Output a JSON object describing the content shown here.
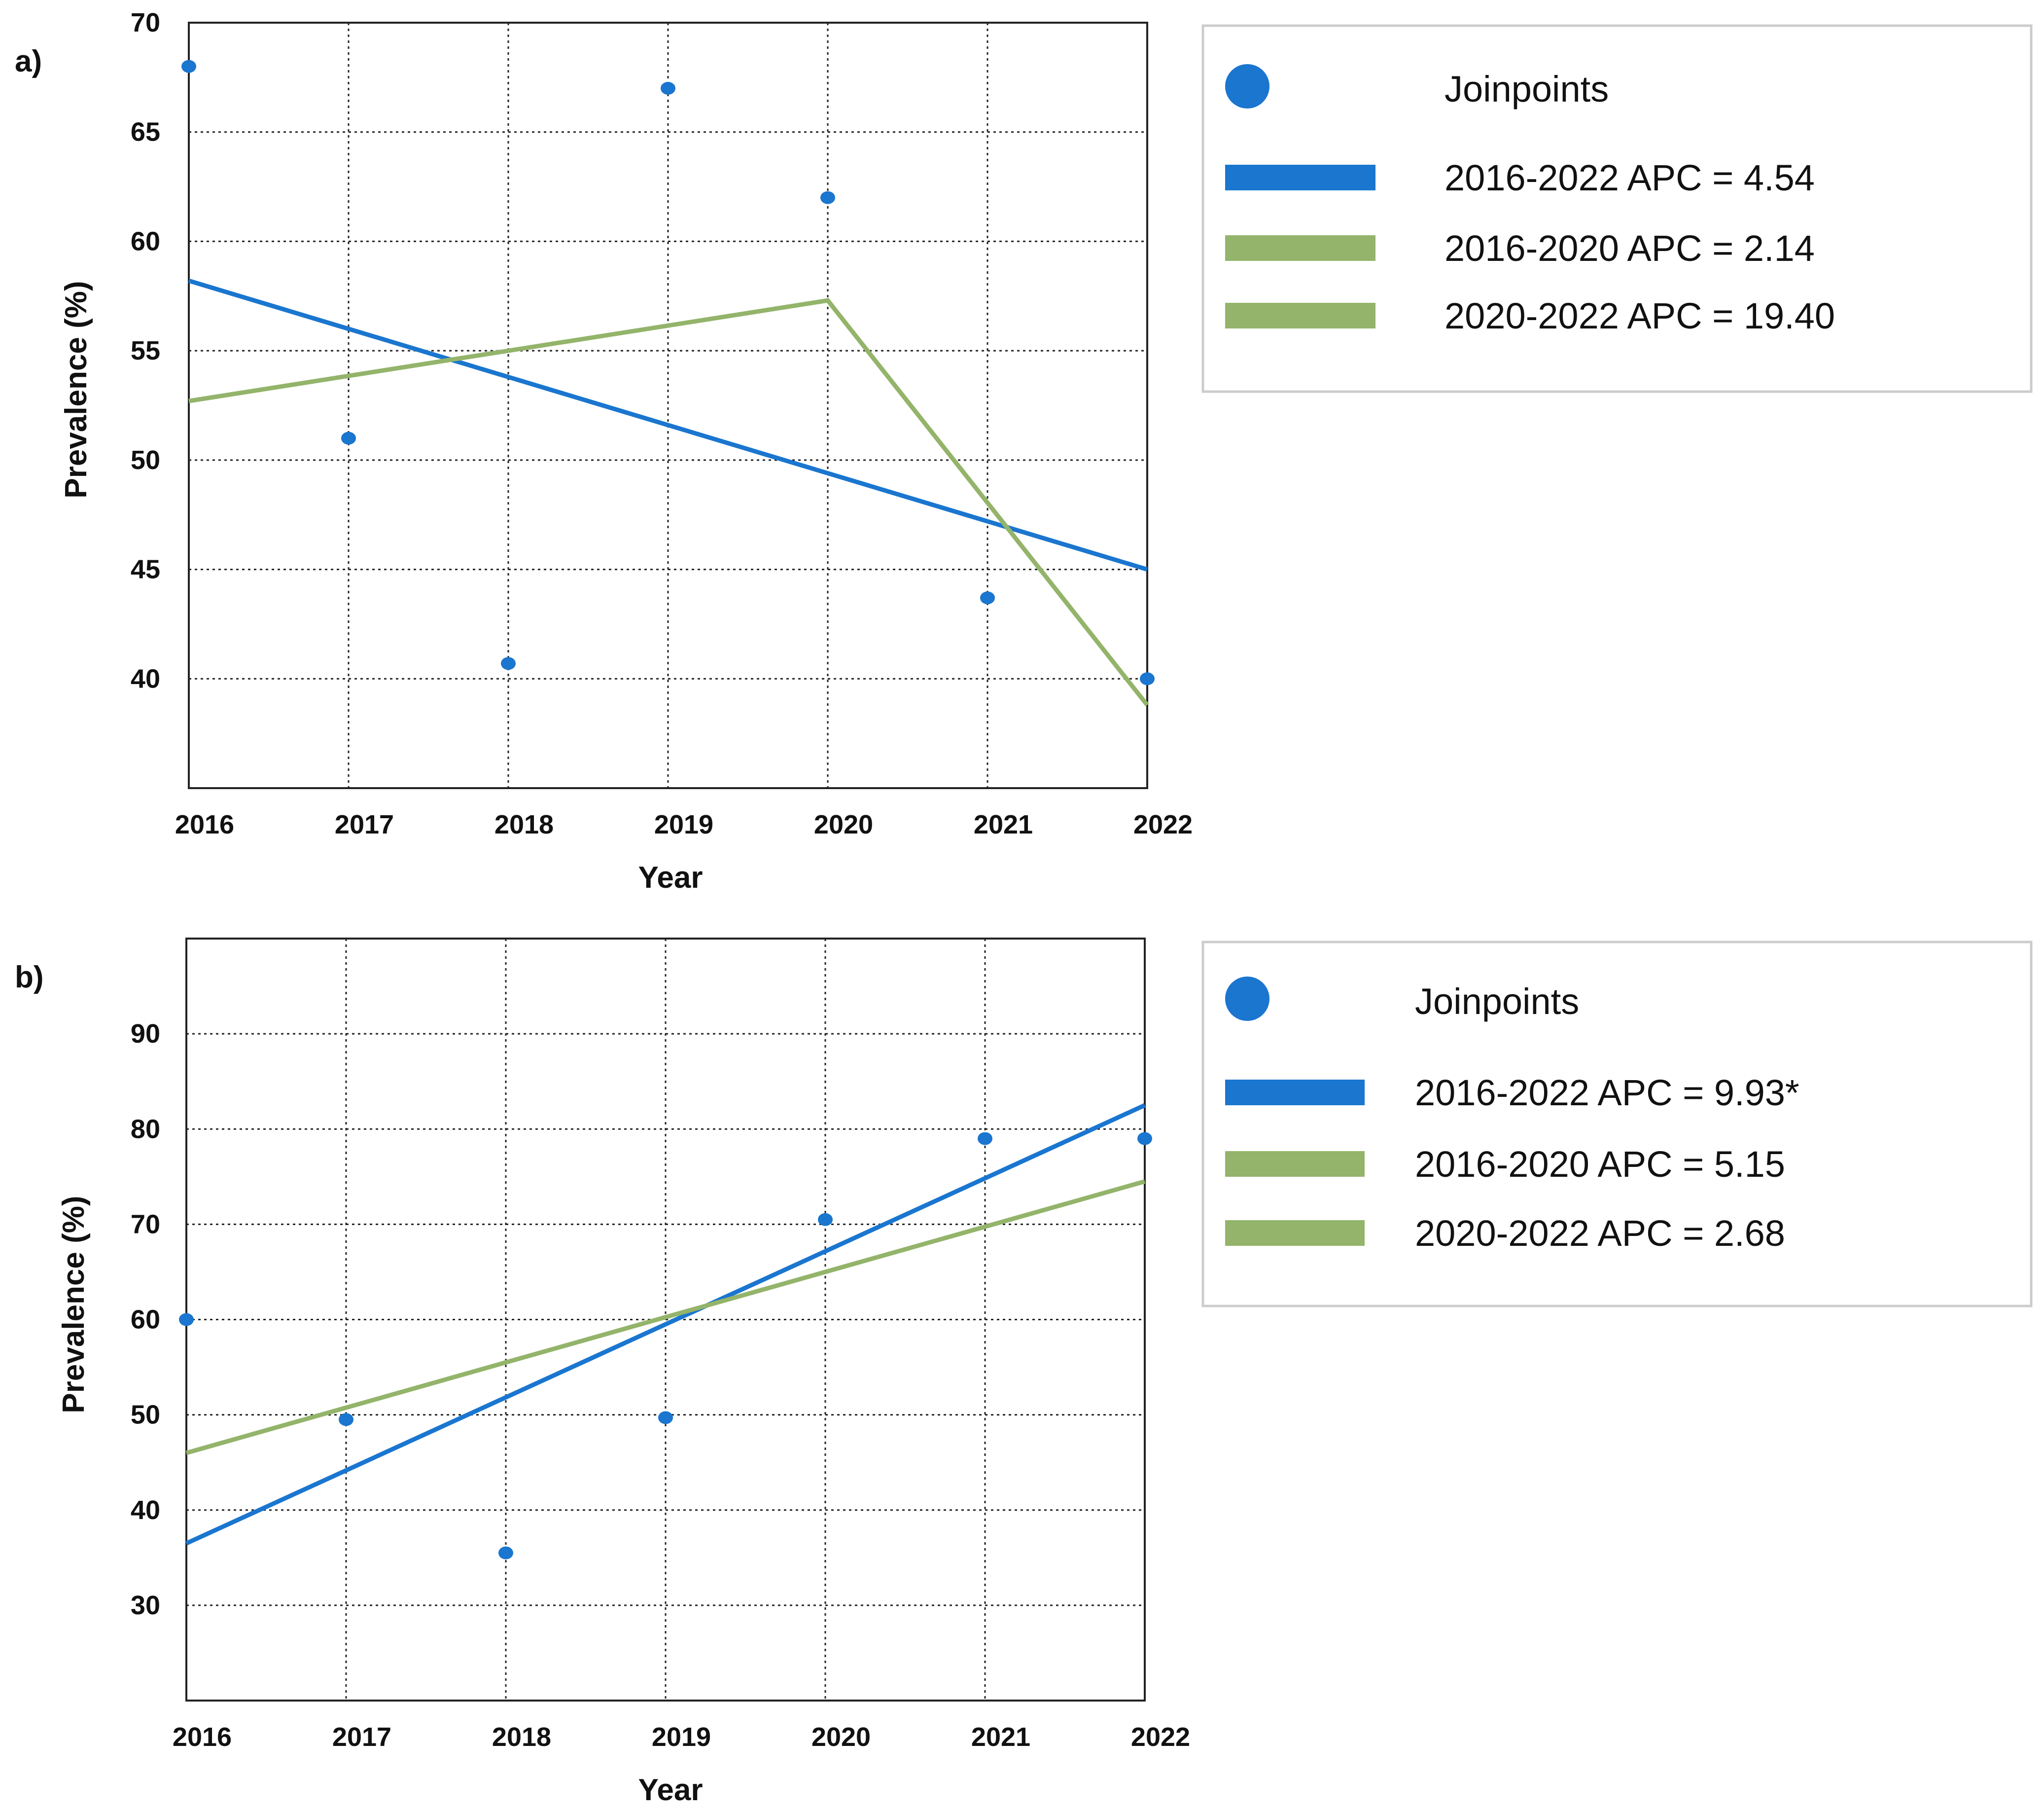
{
  "figure": {
    "panel_labels": [
      "a)",
      "b)"
    ]
  },
  "colors": {
    "series_overall": "#1a76cf",
    "series_segments": "#93b46a",
    "points": "#1a76cf",
    "highlight_tick": "#e0261c",
    "text": "#111111"
  },
  "chart_data": [
    {
      "type": "scatter",
      "panel": "a)",
      "xlabel": "Year",
      "ylabel": "Prevalence (%)",
      "x_ticks": [
        "2016",
        "2017",
        "2018",
        "2019",
        "2020",
        "2021",
        "2022"
      ],
      "highlight_tick": "2020",
      "y_ticks": [
        40,
        45,
        50,
        55,
        60,
        65,
        70
      ],
      "xlim": [
        2016,
        2022
      ],
      "ylim": [
        35,
        70
      ],
      "grid": true,
      "points": [
        {
          "x": 2016,
          "y": 68
        },
        {
          "x": 2017,
          "y": 51
        },
        {
          "x": 2018,
          "y": 40.7
        },
        {
          "x": 2019,
          "y": 67
        },
        {
          "x": 2020,
          "y": 62
        },
        {
          "x": 2021,
          "y": 43.7
        },
        {
          "x": 2022,
          "y": 40
        }
      ],
      "lines": [
        {
          "name": "2016-2022 APC = 4.54",
          "color_key": "series_overall",
          "x": [
            2016,
            2022
          ],
          "y": [
            58.2,
            45
          ]
        },
        {
          "name": "2016-2020 APC = 2.14 / 2020-2022 APC = 19.40",
          "color_key": "series_segments",
          "x": [
            2016,
            2020,
            2022
          ],
          "y": [
            52.7,
            57.3,
            38.8
          ]
        }
      ],
      "legend": {
        "position": "right",
        "entries": [
          {
            "label": "Joinpoints",
            "marker": "dot"
          },
          {
            "label": "2016-2022 APC = 4.54",
            "marker": "bar",
            "color_key": "series_overall"
          },
          {
            "label": "2016-2020 APC = 2.14",
            "marker": "bar",
            "color_key": "series_segments"
          },
          {
            "label": "2020-2022 APC = 19.40",
            "marker": "bar",
            "color_key": "series_segments"
          }
        ]
      }
    },
    {
      "type": "scatter",
      "panel": "b)",
      "xlabel": "Year",
      "ylabel": "Prevalence (%)",
      "x_ticks": [
        "2016",
        "2017",
        "2018",
        "2019",
        "2020",
        "2021",
        "2022"
      ],
      "highlight_tick": "2020",
      "y_ticks": [
        30,
        40,
        50,
        60,
        70,
        80,
        90
      ],
      "xlim": [
        2016,
        2022
      ],
      "ylim": [
        20,
        100
      ],
      "grid": true,
      "points": [
        {
          "x": 2016,
          "y": 60
        },
        {
          "x": 2017,
          "y": 49.5
        },
        {
          "x": 2018,
          "y": 35.5
        },
        {
          "x": 2019,
          "y": 49.7
        },
        {
          "x": 2020,
          "y": 70.5
        },
        {
          "x": 2021,
          "y": 79
        },
        {
          "x": 2022,
          "y": 79
        }
      ],
      "lines": [
        {
          "name": "2016-2022 APC = 9.93*",
          "color_key": "series_overall",
          "x": [
            2016,
            2022
          ],
          "y": [
            36.5,
            82.5
          ]
        },
        {
          "name": "2016-2020 APC = 5.15 / 2020-2022 APC = 2.68",
          "color_key": "series_segments",
          "x": [
            2016,
            2022
          ],
          "y": [
            46,
            74.5
          ]
        }
      ],
      "legend": {
        "position": "right",
        "entries": [
          {
            "label": "Joinpoints",
            "marker": "dot"
          },
          {
            "label": "2016-2022 APC = 9.93*",
            "marker": "bar",
            "color_key": "series_overall"
          },
          {
            "label": "2016-2020 APC = 5.15",
            "marker": "bar",
            "color_key": "series_segments"
          },
          {
            "label": "2020-2022 APC = 2.68",
            "marker": "bar",
            "color_key": "series_segments"
          }
        ]
      }
    }
  ]
}
